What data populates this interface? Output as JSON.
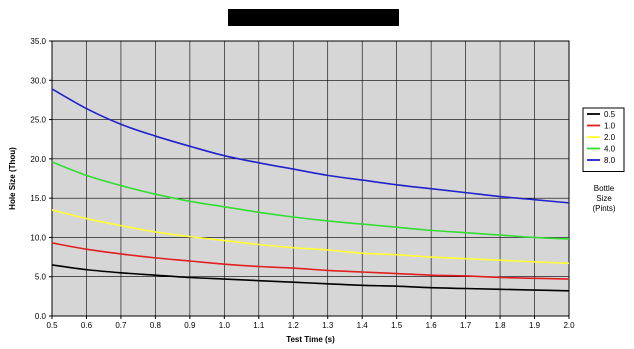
{
  "chart_data": {
    "type": "line",
    "title": "",
    "title_redacted": true,
    "xlabel": "Test Time (s)",
    "ylabel": "Hole Size (Thou)",
    "xlim": [
      0.5,
      2.0
    ],
    "ylim": [
      0.0,
      35.0
    ],
    "xticks": [
      "0.5",
      "0.6",
      "0.7",
      "0.8",
      "0.9",
      "1.0",
      "1.1",
      "1.2",
      "1.3",
      "1.4",
      "1.5",
      "1.6",
      "1.7",
      "1.8",
      "1.9",
      "2.0"
    ],
    "yticks": [
      "0.0",
      "5.0",
      "10.0",
      "15.0",
      "20.0",
      "25.0",
      "30.0",
      "35.0"
    ],
    "grid": true,
    "legend_position": "right",
    "legend_caption": [
      "Bottle",
      "Size",
      "(Pints)"
    ],
    "x": [
      0.5,
      0.6,
      0.7,
      0.8,
      0.9,
      1.0,
      1.1,
      1.2,
      1.3,
      1.4,
      1.5,
      1.6,
      1.7,
      1.8,
      1.9,
      2.0
    ],
    "series": [
      {
        "name": "0.5",
        "color": "#000000",
        "values": [
          6.5,
          5.9,
          5.5,
          5.2,
          4.9,
          4.7,
          4.5,
          4.3,
          4.1,
          3.9,
          3.8,
          3.6,
          3.5,
          3.4,
          3.3,
          3.2
        ]
      },
      {
        "name": "1.0",
        "color": "#e02020",
        "values": [
          9.3,
          8.5,
          7.9,
          7.4,
          7.0,
          6.6,
          6.3,
          6.1,
          5.8,
          5.6,
          5.4,
          5.2,
          5.1,
          4.9,
          4.8,
          4.7
        ]
      },
      {
        "name": "2.0",
        "color": "#ffff33",
        "values": [
          13.5,
          12.4,
          11.5,
          10.7,
          10.1,
          9.6,
          9.1,
          8.7,
          8.4,
          8.0,
          7.8,
          7.5,
          7.3,
          7.1,
          6.9,
          6.7
        ]
      },
      {
        "name": "4.0",
        "color": "#33dd33",
        "values": [
          19.6,
          17.9,
          16.6,
          15.5,
          14.6,
          13.9,
          13.2,
          12.6,
          12.1,
          11.7,
          11.3,
          10.9,
          10.6,
          10.3,
          10.0,
          9.8
        ]
      },
      {
        "name": "8.0",
        "color": "#2222cc",
        "values": [
          28.9,
          26.4,
          24.4,
          22.9,
          21.6,
          20.4,
          19.5,
          18.7,
          17.9,
          17.3,
          16.7,
          16.2,
          15.7,
          15.2,
          14.8,
          14.4
        ]
      }
    ]
  }
}
